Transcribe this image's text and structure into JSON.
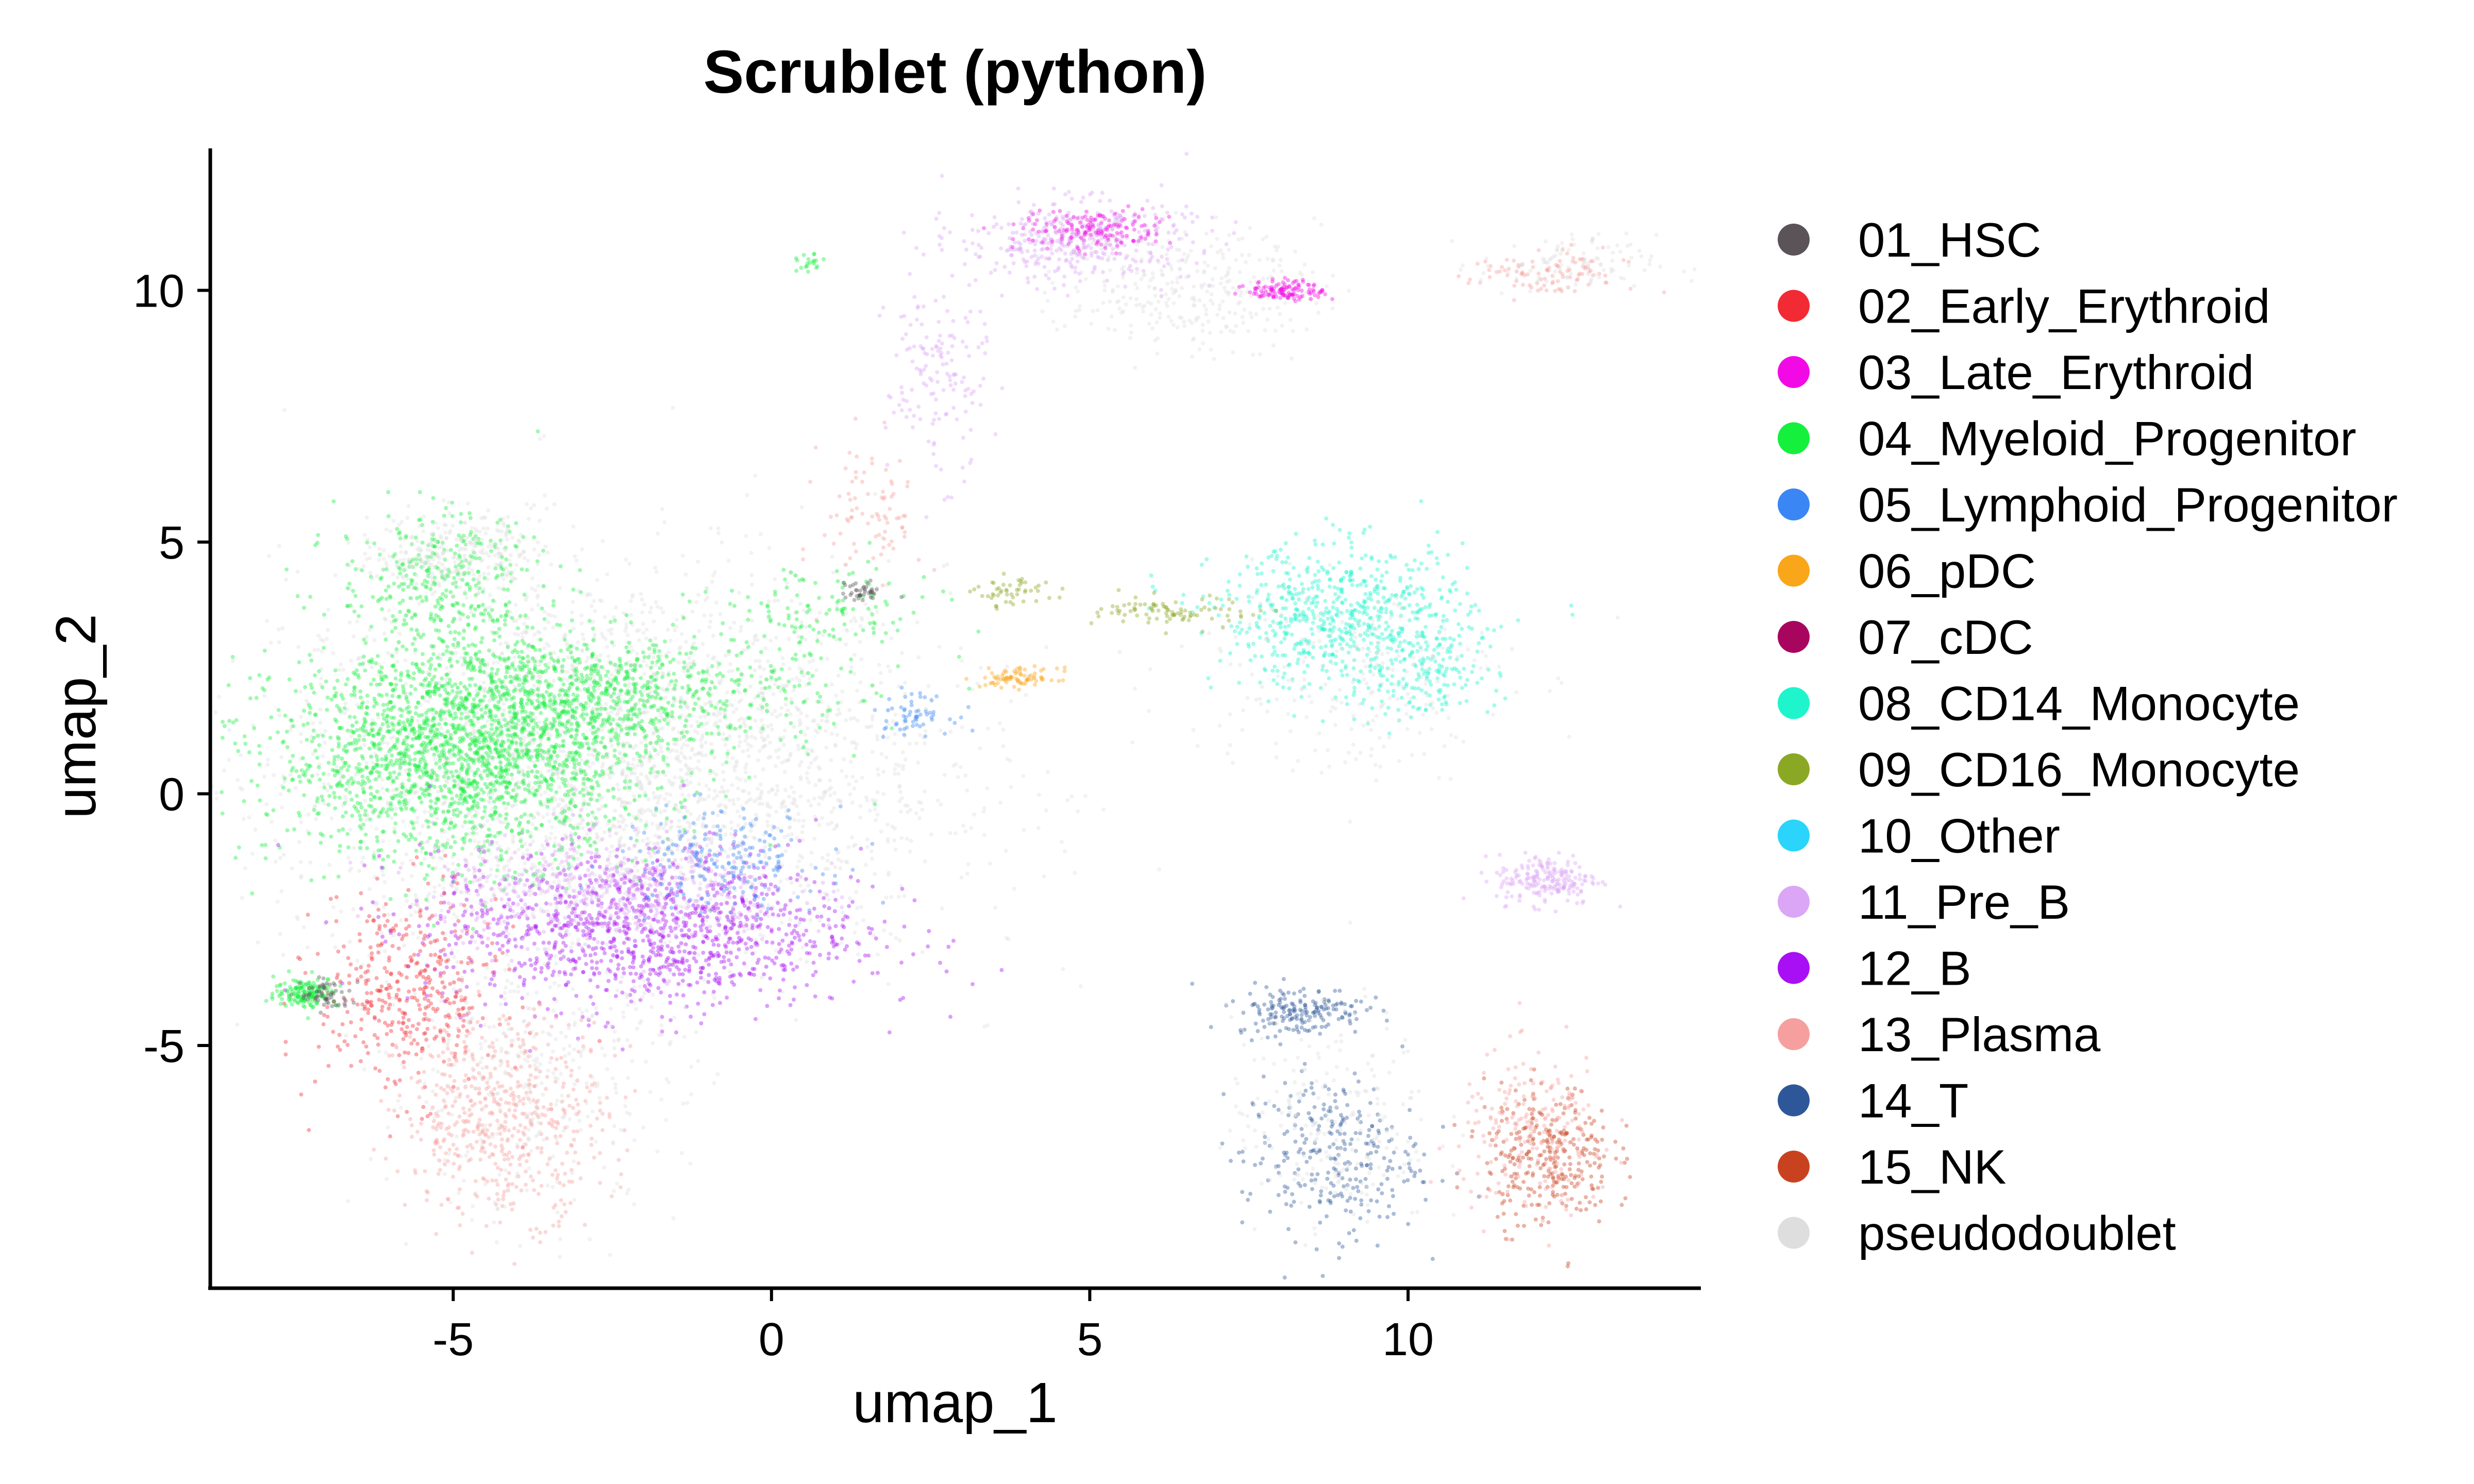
{
  "chart_data": {
    "type": "scatter",
    "title": "Scrublet (python)",
    "xlabel": "umap_1",
    "ylabel": "umap_2",
    "xlim": [
      -8.8,
      14.6
    ],
    "ylim": [
      -9.8,
      12.8
    ],
    "xticks": [
      -5,
      0,
      5,
      10
    ],
    "yticks": [
      -5,
      0,
      5,
      10
    ],
    "xtick_labels": [
      "-5",
      "0",
      "5",
      "10"
    ],
    "ytick_labels": [
      "-5",
      "0",
      "5",
      "10"
    ],
    "grid": false,
    "legend_position": "right",
    "series": [
      {
        "name": "01_HSC",
        "color": "#5a5357"
      },
      {
        "name": "02_Early_Erythroid",
        "color": "#f22a33"
      },
      {
        "name": "03_Late_Erythroid",
        "color": "#f20ae6"
      },
      {
        "name": "04_Myeloid_Progenitor",
        "color": "#14f03c"
      },
      {
        "name": "05_Lymphoid_Progenitor",
        "color": "#3a86f5"
      },
      {
        "name": "06_pDC",
        "color": "#faa61a"
      },
      {
        "name": "07_cDC",
        "color": "#a8055f"
      },
      {
        "name": "08_CD14_Monocyte",
        "color": "#1ef5cc"
      },
      {
        "name": "09_CD16_Monocyte",
        "color": "#8ba824"
      },
      {
        "name": "10_Other",
        "color": "#2ad4fa"
      },
      {
        "name": "11_Pre_B",
        "color": "#dba6f5"
      },
      {
        "name": "12_B",
        "color": "#a80ff5"
      },
      {
        "name": "13_Plasma",
        "color": "#f5a09e"
      },
      {
        "name": "14_T",
        "color": "#2e5799"
      },
      {
        "name": "15_NK",
        "color": "#c9421f"
      },
      {
        "name": "pseudodoublet",
        "color": "#dedede"
      }
    ],
    "clusters": [
      {
        "series": "pseudodoublet",
        "cx": -2.5,
        "cy": 0.5,
        "sx": 2.6,
        "sy": 2.0,
        "n": 3000
      },
      {
        "series": "04_Myeloid_Progenitor",
        "cx": -4.8,
        "cy": 0.7,
        "sx": 1.5,
        "sy": 1.0,
        "n": 1900
      },
      {
        "series": "04_Myeloid_Progenitor",
        "cx": -3.0,
        "cy": 2.0,
        "sx": 1.8,
        "sy": 0.6,
        "n": 900
      },
      {
        "series": "04_Myeloid_Progenitor",
        "cx": -5.2,
        "cy": 4.2,
        "sx": 0.8,
        "sy": 0.7,
        "n": 350
      },
      {
        "series": "pseudodoublet",
        "cx": -5.0,
        "cy": 4.8,
        "sx": 0.6,
        "sy": 0.4,
        "n": 250
      },
      {
        "series": "12_B",
        "cx": -2.0,
        "cy": -2.7,
        "sx": 1.7,
        "sy": 0.8,
        "n": 1200
      },
      {
        "series": "11_Pre_B",
        "cx": -2.5,
        "cy": -1.9,
        "sx": 1.4,
        "sy": 0.6,
        "n": 500
      },
      {
        "series": "05_Lymphoid_Progenitor",
        "cx": -0.8,
        "cy": -1.3,
        "sx": 0.8,
        "sy": 0.5,
        "n": 200
      },
      {
        "series": "02_Early_Erythroid",
        "cx": -5.7,
        "cy": -4.0,
        "sx": 0.7,
        "sy": 1.0,
        "n": 380
      },
      {
        "series": "13_Plasma",
        "cx": -4.2,
        "cy": -6.4,
        "sx": 0.8,
        "sy": 1.0,
        "n": 550
      },
      {
        "series": "pseudodoublet",
        "cx": -3.8,
        "cy": -5.8,
        "sx": 1.2,
        "sy": 1.3,
        "n": 320
      },
      {
        "series": "04_Myeloid_Progenitor",
        "cx": -7.3,
        "cy": -3.95,
        "sx": 0.25,
        "sy": 0.15,
        "n": 160
      },
      {
        "series": "01_HSC",
        "cx": -7.0,
        "cy": -4.0,
        "sx": 0.2,
        "sy": 0.15,
        "n": 60
      },
      {
        "series": "08_CD14_Monocyte",
        "cx": 9.0,
        "cy": 3.5,
        "sx": 1.0,
        "sy": 0.7,
        "n": 650
      },
      {
        "series": "08_CD14_Monocyte",
        "cx": 10.2,
        "cy": 2.4,
        "sx": 0.6,
        "sy": 0.5,
        "n": 160
      },
      {
        "series": "pseudodoublet",
        "cx": 9.0,
        "cy": 2.3,
        "sx": 1.3,
        "sy": 1.0,
        "n": 220
      },
      {
        "series": "09_CD16_Monocyte",
        "cx": 6.4,
        "cy": 3.6,
        "sx": 0.6,
        "sy": 0.15,
        "n": 90
      },
      {
        "series": "11_Pre_B",
        "cx": 4.8,
        "cy": 11.0,
        "sx": 0.9,
        "sy": 0.4,
        "n": 400
      },
      {
        "series": "pseudodoublet",
        "cx": 6.6,
        "cy": 10.0,
        "sx": 1.0,
        "sy": 0.6,
        "n": 300
      },
      {
        "series": "03_Late_Erythroid",
        "cx": 8.1,
        "cy": 10.0,
        "sx": 0.3,
        "sy": 0.1,
        "n": 120
      },
      {
        "series": "03_Late_Erythroid",
        "cx": 5.1,
        "cy": 11.2,
        "sx": 0.6,
        "sy": 0.2,
        "n": 150
      },
      {
        "series": "13_Plasma",
        "cx": 12.2,
        "cy": 10.3,
        "sx": 0.6,
        "sy": 0.25,
        "n": 100
      },
      {
        "series": "pseudodoublet",
        "cx": 12.5,
        "cy": 10.5,
        "sx": 0.7,
        "sy": 0.3,
        "n": 100
      },
      {
        "series": "11_Pre_B",
        "cx": 12.2,
        "cy": -1.7,
        "sx": 0.4,
        "sy": 0.25,
        "n": 200
      },
      {
        "series": "14_T",
        "cx": 8.3,
        "cy": -4.3,
        "sx": 0.5,
        "sy": 0.25,
        "n": 180
      },
      {
        "series": "14_T",
        "cx": 8.8,
        "cy": -7.2,
        "sx": 0.7,
        "sy": 0.8,
        "n": 280
      },
      {
        "series": "pseudodoublet",
        "cx": 8.8,
        "cy": -6.5,
        "sx": 0.8,
        "sy": 1.1,
        "n": 220
      },
      {
        "series": "15_NK",
        "cx": 12.2,
        "cy": -7.2,
        "sx": 0.5,
        "sy": 0.7,
        "n": 300
      },
      {
        "series": "13_Plasma",
        "cx": 12.0,
        "cy": -6.8,
        "sx": 0.6,
        "sy": 0.8,
        "n": 220
      },
      {
        "series": "05_Lymphoid_Progenitor",
        "cx": 2.2,
        "cy": 1.6,
        "sx": 0.3,
        "sy": 0.2,
        "n": 60
      },
      {
        "series": "06_pDC",
        "cx": 3.9,
        "cy": 2.3,
        "sx": 0.3,
        "sy": 0.1,
        "n": 80
      },
      {
        "series": "04_Myeloid_Progenitor",
        "cx": 0.8,
        "cy": 3.6,
        "sx": 0.9,
        "sy": 0.5,
        "n": 120
      },
      {
        "series": "01_HSC",
        "cx": 1.4,
        "cy": 4.0,
        "sx": 0.15,
        "sy": 0.1,
        "n": 40
      },
      {
        "series": "13_Plasma",
        "cx": 1.6,
        "cy": 5.6,
        "sx": 0.4,
        "sy": 0.8,
        "n": 80
      },
      {
        "series": "11_Pre_B",
        "cx": 2.6,
        "cy": 8.3,
        "sx": 0.4,
        "sy": 1.0,
        "n": 150
      },
      {
        "series": "09_CD16_Monocyte",
        "cx": 3.8,
        "cy": 4.0,
        "sx": 0.3,
        "sy": 0.15,
        "n": 50
      },
      {
        "series": "04_Myeloid_Progenitor",
        "cx": 0.6,
        "cy": 10.5,
        "sx": 0.1,
        "sy": 0.1,
        "n": 20
      }
    ]
  }
}
